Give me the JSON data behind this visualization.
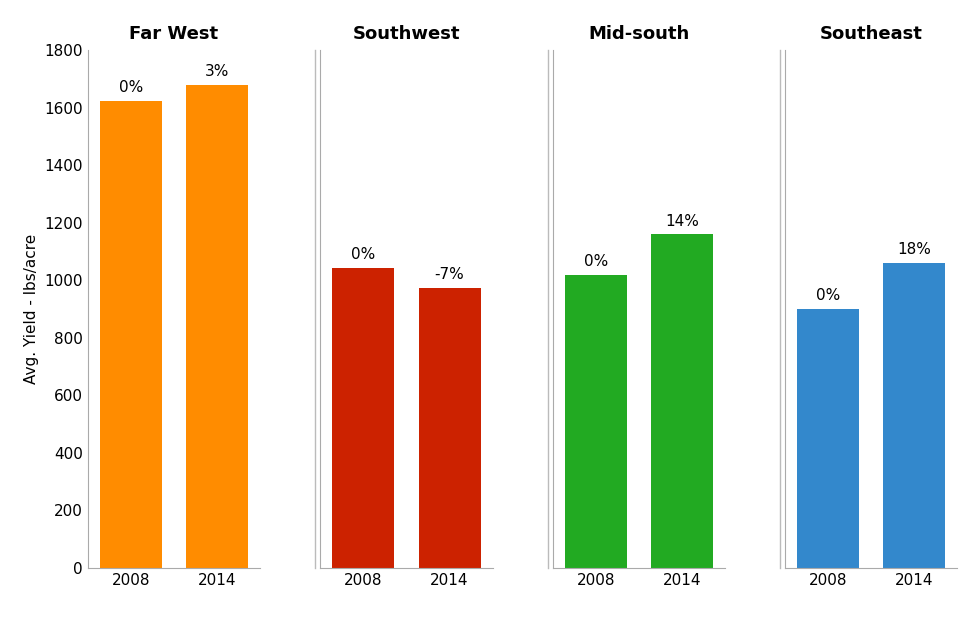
{
  "regions": [
    "Far West",
    "Southwest",
    "Mid-south",
    "Southeast"
  ],
  "years": [
    "2008",
    "2014"
  ],
  "values": {
    "Far West": [
      1625,
      1680
    ],
    "Southwest": [
      1045,
      975
    ],
    "Mid-south": [
      1020,
      1160
    ],
    "Southeast": [
      900,
      1060
    ]
  },
  "labels": {
    "Far West": [
      "0%",
      "3%"
    ],
    "Southwest": [
      "0%",
      "-7%"
    ],
    "Mid-south": [
      "0%",
      "14%"
    ],
    "Southeast": [
      "0%",
      "18%"
    ]
  },
  "colors": {
    "Far West": "#FF8C00",
    "Southwest": "#CC2200",
    "Mid-south": "#22AA22",
    "Southeast": "#3388CC"
  },
  "ylabel": "Avg. Yield - lbs/acre",
  "ylim": [
    0,
    1800
  ],
  "yticks": [
    0,
    200,
    400,
    600,
    800,
    1000,
    1200,
    1400,
    1600,
    1800
  ],
  "background_color": "#ffffff",
  "separator_color": "#bbbbbb",
  "title_fontsize": 13,
  "label_fontsize": 11,
  "tick_fontsize": 11,
  "bar_label_fontsize": 11
}
